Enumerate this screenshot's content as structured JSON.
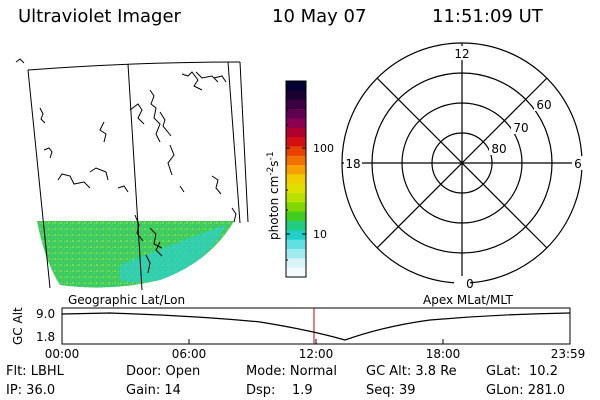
{
  "header": {
    "title": "Ultraviolet Imager",
    "date": "10 May 07",
    "time": "11:51:09 UT"
  },
  "colorbar": {
    "unit_label": "photon cm",
    "unit_sup1": "-2",
    "unit_mid": "s",
    "unit_sup2": "-1",
    "ticks": [
      "100",
      "10"
    ],
    "colors": [
      "#000033",
      "#1a0030",
      "#3a0040",
      "#600050",
      "#8a0050",
      "#b00030",
      "#d01010",
      "#e84000",
      "#f07000",
      "#f5a000",
      "#f0cc00",
      "#e0e000",
      "#b8e000",
      "#80d800",
      "#40cc20",
      "#20cc80",
      "#20d0c8",
      "#60e0e0",
      "#a0eaee",
      "#d8f4f6",
      "#f4fafc"
    ]
  },
  "geo_panel": {
    "label": "Geographic Lat/Lon",
    "fill_color": "#40cc55"
  },
  "polar_panel": {
    "label": "Apex MLat/MLT",
    "mlt_labels": {
      "top": "12",
      "left": "18",
      "right": "6",
      "bottom": "0"
    },
    "lat_labels": [
      "60",
      "70",
      "80"
    ]
  },
  "altitude_plot": {
    "ylabel": "GC Alt",
    "ytick_top": "9.0",
    "ytick_bottom": "1.8",
    "xticks": [
      "00:00",
      "06:00",
      "12:00",
      "18:00",
      "23:59"
    ],
    "marker_color": "#c00000"
  },
  "info": {
    "flt": "Flt: LBHL",
    "ip": "IP: 36.0",
    "door": "Door: Open",
    "gain": "Gain: 14",
    "mode": "Mode: Normal",
    "dsp": "Dsp:    1.9",
    "gcalt": "GC Alt: 3.8 Re",
    "seq": "Seq: 39",
    "glat": "GLat:  10.2",
    "glon": "GLon: 281.0"
  }
}
